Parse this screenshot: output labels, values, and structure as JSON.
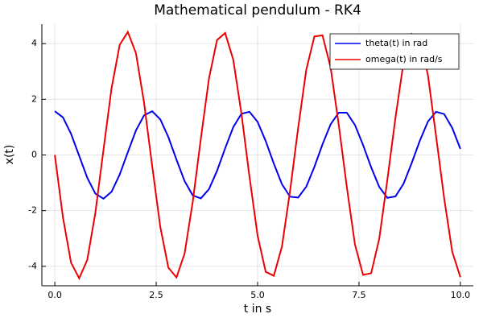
{
  "chart_data": {
    "type": "line",
    "title": "Mathematical pendulum - RK4",
    "x_label": "t in s",
    "y_label": "x(t)",
    "x": [
      0,
      0.2,
      0.4,
      0.6,
      0.8,
      1,
      1.2,
      1.4,
      1.6,
      1.8,
      2,
      2.2,
      2.4,
      2.6,
      2.8,
      3,
      3.2,
      3.4,
      3.6,
      3.8,
      4,
      4.2,
      4.4,
      4.6,
      4.8,
      5,
      5.2,
      5.4,
      5.6,
      5.8,
      6,
      6.2,
      6.4,
      6.6,
      6.8,
      7,
      7.2,
      7.4,
      7.6,
      7.8,
      8,
      8.2,
      8.4,
      8.6,
      8.8,
      9,
      9.2,
      9.4,
      9.6,
      9.8,
      10
    ],
    "series": [
      {
        "name": "theta(t) in rad",
        "color": "#0000ee",
        "values": [
          1.57,
          1.35,
          0.76,
          -0.03,
          -0.82,
          -1.39,
          -1.57,
          -1.32,
          -0.7,
          0.1,
          0.88,
          1.42,
          1.57,
          1.28,
          0.64,
          -0.17,
          -0.94,
          -1.45,
          -1.56,
          -1.23,
          -0.57,
          0.24,
          1.0,
          1.48,
          1.55,
          1.19,
          0.5,
          -0.31,
          -1.05,
          -1.5,
          -1.53,
          -1.14,
          -0.43,
          0.38,
          1.1,
          1.52,
          1.52,
          1.08,
          0.36,
          -0.44,
          -1.15,
          -1.54,
          -1.49,
          -1.03,
          -0.29,
          0.51,
          1.2,
          1.55,
          1.47,
          0.97,
          0.22
        ]
      },
      {
        "name": "omega(t) in rad/s",
        "color": "#ee0000",
        "values": [
          0,
          -2.24,
          -3.87,
          -4.43,
          -3.77,
          -2.07,
          0.19,
          2.41,
          3.96,
          4.42,
          3.66,
          1.88,
          -0.39,
          -2.58,
          -4.05,
          -4.4,
          -3.54,
          -1.69,
          0.58,
          2.74,
          4.13,
          4.38,
          3.42,
          1.5,
          -0.78,
          -2.9,
          -4.2,
          -4.34,
          -3.29,
          -1.3,
          0.97,
          3.06,
          4.26,
          4.3,
          3.15,
          1.1,
          -1.15,
          -3.21,
          -4.31,
          -4.25,
          -3.01,
          -0.89,
          1.34,
          3.34,
          4.35,
          4.19,
          2.87,
          0.69,
          -1.55,
          -3.48,
          -4.39
        ]
      }
    ],
    "xlim": [
      -0.32,
      10.32
    ],
    "ylim": [
      -4.7,
      4.7
    ],
    "xticks": [
      {
        "value": 0,
        "label": "0.0"
      },
      {
        "value": 2.5,
        "label": "2.5"
      },
      {
        "value": 5,
        "label": "5.0"
      },
      {
        "value": 7.5,
        "label": "7.5"
      },
      {
        "value": 10,
        "label": "10.0"
      }
    ],
    "yticks": [
      -4,
      -2,
      0,
      2,
      4
    ],
    "grid": true,
    "legend": "top-right"
  }
}
